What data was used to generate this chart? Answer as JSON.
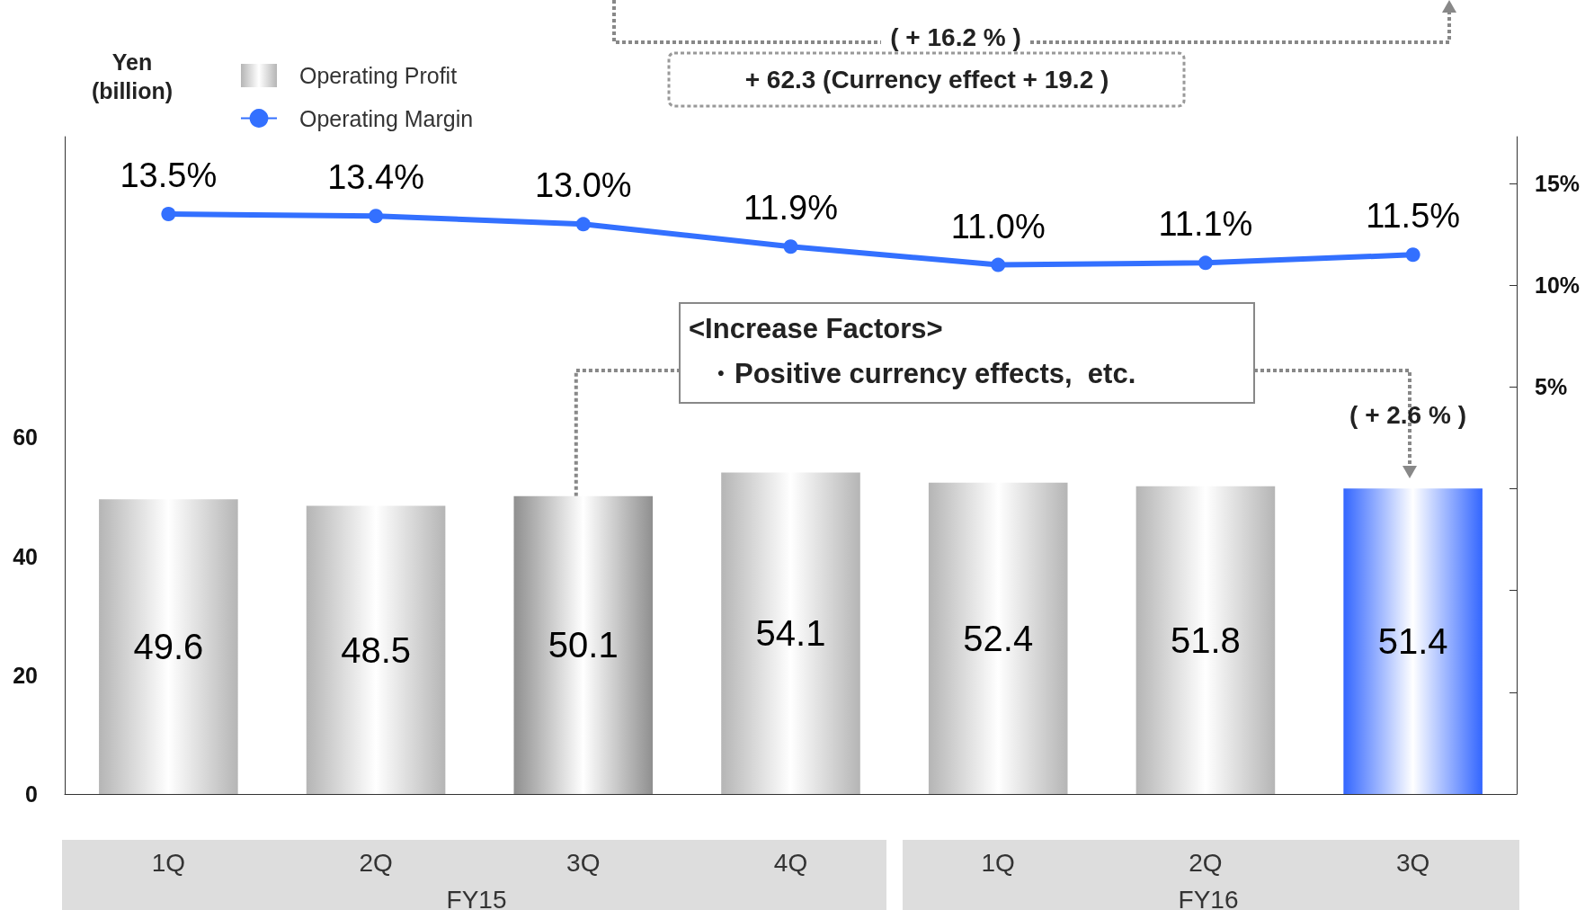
{
  "chart_data": {
    "type": "bar",
    "ylabel": "Yen\n(billion)",
    "categories": [
      "1Q",
      "2Q",
      "3Q",
      "4Q",
      "1Q",
      "2Q",
      "3Q"
    ],
    "series": [
      {
        "name": "Operating Profit",
        "values": [
          49.6,
          48.5,
          50.1,
          54.1,
          52.4,
          51.8,
          51.4
        ],
        "colors": [
          "#b5b5b5",
          "#b5b5b5",
          "#8f8f8f",
          "#b5b5b5",
          "#b5b5b5",
          "#b5b5b5",
          "#3366ff"
        ]
      },
      {
        "name": "Operating Margin",
        "type": "line",
        "axis": "y2",
        "color": "#3370ff",
        "values": [
          13.5,
          13.4,
          13.0,
          11.9,
          11.0,
          11.1,
          11.5
        ],
        "value_labels": [
          "13.5%",
          "13.4%",
          "13.0%",
          "11.9%",
          "11.0%",
          "11.1%",
          "11.5%"
        ]
      }
    ],
    "data_labels": true,
    "ylim": [
      0,
      110.6
    ],
    "yticks": [
      0,
      20,
      40,
      60
    ],
    "y2lim": [
      -15,
      17.3
    ],
    "y2ticks": [
      {
        "value": -15,
        "label": null
      },
      {
        "value": -10,
        "label": null
      },
      {
        "value": -5,
        "label": null
      },
      {
        "value": 0,
        "label": null
      },
      {
        "value": 5,
        "label": "5%"
      },
      {
        "value": 10,
        "label": "10%"
      },
      {
        "value": 15,
        "label": "15%"
      }
    ],
    "marker": "circle",
    "grid": false,
    "legend": "top left",
    "annotations": [
      "( + 16.2 % )",
      "+ 62.3 (Currency effect + 19.2 )",
      "<Increase Factors>",
      {
        "text": "・Positive currency effects,  etc.",
        "x": "3Q",
        "y": 50.1
      },
      "( + 2.6 % )",
      "FY15",
      "FY16"
    ]
  }
}
